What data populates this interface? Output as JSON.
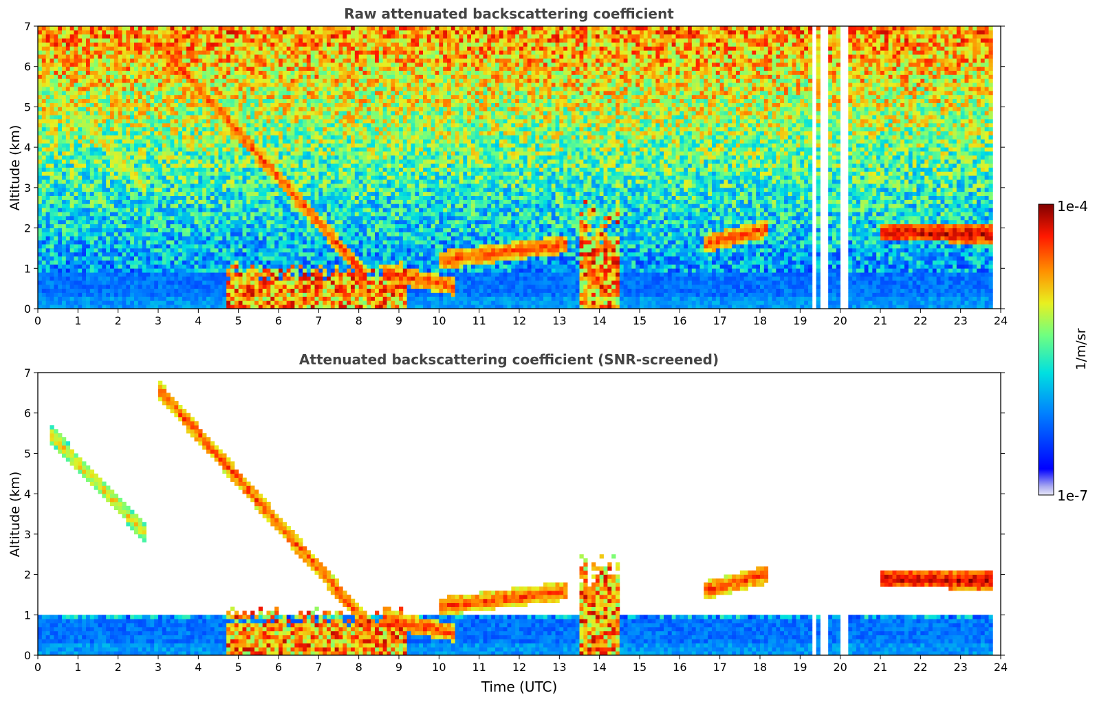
{
  "chart_data": [
    {
      "type": "heatmap",
      "title": "Raw attenuated backscattering coefficient",
      "xlabel": "",
      "ylabel": "Altitude (km)",
      "xlim": [
        0,
        24
      ],
      "ylim": [
        0,
        7
      ],
      "xticks": [
        0,
        1,
        2,
        3,
        4,
        5,
        6,
        7,
        8,
        9,
        10,
        11,
        12,
        13,
        14,
        15,
        16,
        17,
        18,
        19,
        20,
        21,
        22,
        23,
        24
      ],
      "yticks": [
        0,
        1,
        2,
        3,
        4,
        5,
        6,
        7
      ],
      "noise_increases_with_altitude": true,
      "missing_data_intervals": [
        [
          19.3,
          19.4
        ],
        [
          19.55,
          19.65
        ],
        [
          20.05,
          20.2
        ],
        [
          23.8,
          24
        ]
      ],
      "features": [
        {
          "name": "descending cirrus layer",
          "time_start": 0.3,
          "time_end": 2.7,
          "altitude_start": 5.5,
          "altitude_end": 3.0,
          "intensity": "moderate"
        },
        {
          "name": "descending cloud band",
          "time_start": 3.0,
          "time_end": 8.2,
          "altitude_start": 6.6,
          "altitude_end": 0.8,
          "intensity": "high"
        },
        {
          "name": "boundary layer aerosol / rain",
          "time_start": 4.7,
          "time_end": 9.2,
          "altitude_start": 0.0,
          "altitude_end": 1.2,
          "intensity": "high"
        },
        {
          "name": "low cloud layer",
          "time_start": 8.6,
          "time_end": 10.4,
          "altitude_start": 0.9,
          "altitude_end": 0.55,
          "intensity": "high"
        },
        {
          "name": "scattered clouds",
          "time_start": 10.0,
          "time_end": 13.2,
          "altitude_start": 1.2,
          "altitude_end": 1.6,
          "intensity": "high"
        },
        {
          "name": "convective column",
          "time_start": 13.5,
          "time_end": 14.5,
          "altitude_start": 0.0,
          "altitude_end": 2.7,
          "intensity": "high"
        },
        {
          "name": "mid-level cloud",
          "time_start": 16.6,
          "time_end": 18.2,
          "altitude_start": 1.6,
          "altitude_end": 2.0,
          "intensity": "high"
        },
        {
          "name": "stratocumulus deck",
          "time_start": 21.0,
          "time_end": 23.8,
          "altitude_start": 1.9,
          "altitude_end": 1.85,
          "intensity": "very high"
        }
      ]
    },
    {
      "type": "heatmap",
      "title": "Attenuated backscattering coefficient (SNR-screened)",
      "xlabel": "Time (UTC)",
      "ylabel": "Altitude (km)",
      "xlim": [
        0,
        24
      ],
      "ylim": [
        0,
        7
      ],
      "xticks": [
        0,
        1,
        2,
        3,
        4,
        5,
        6,
        7,
        8,
        9,
        10,
        11,
        12,
        13,
        14,
        15,
        16,
        17,
        18,
        19,
        20,
        21,
        22,
        23,
        24
      ],
      "yticks": [
        0,
        1,
        2,
        3,
        4,
        5,
        6,
        7
      ],
      "screening": "pixels with low SNR removed (white)",
      "boundary_layer_top_km": 1.0,
      "missing_data_intervals": [
        [
          19.3,
          19.4
        ],
        [
          19.55,
          19.65
        ],
        [
          20.05,
          20.2
        ],
        [
          23.8,
          24
        ]
      ]
    }
  ],
  "colorbar": {
    "label": "1/m/sr",
    "max_label": "1e-4",
    "min_label": "1e-7",
    "scale": "log",
    "min": 1e-07,
    "max": 0.0001,
    "colormap": "jet"
  }
}
